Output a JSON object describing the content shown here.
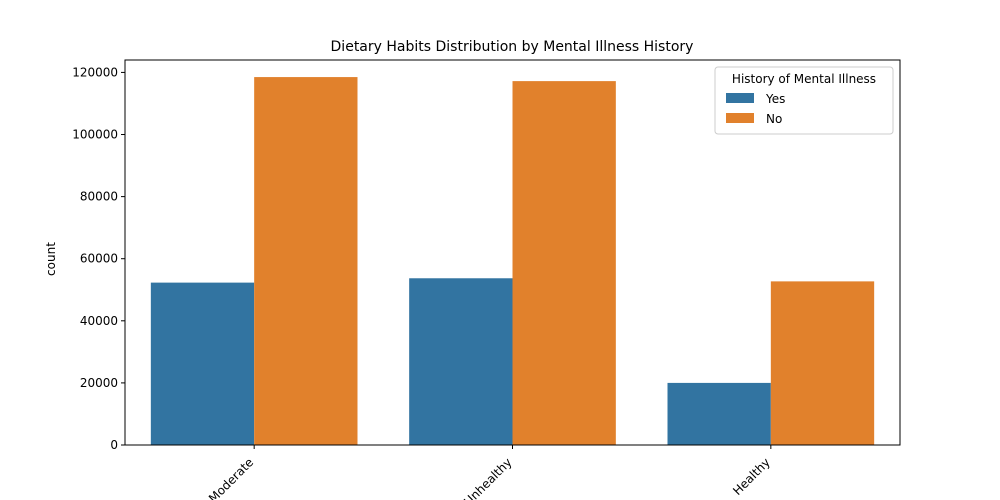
{
  "chart_data": {
    "type": "bar",
    "title": "Dietary Habits Distribution by Mental Illness History",
    "xlabel": "",
    "ylabel": "count",
    "ylim": [
      0,
      124000
    ],
    "yticks": [
      0,
      20000,
      40000,
      60000,
      80000,
      100000,
      120000
    ],
    "ytick_labels": [
      "0",
      "20000",
      "40000",
      "60000",
      "80000",
      "100000",
      "120000"
    ],
    "categories": [
      "Moderate",
      "Unhealthy",
      "Healthy"
    ],
    "series": [
      {
        "name": "Yes",
        "color": "#3274a1",
        "values": [
          52300,
          53700,
          20000
        ]
      },
      {
        "name": "No",
        "color": "#e1812c",
        "values": [
          118500,
          117200,
          52700
        ]
      }
    ],
    "legend": {
      "title": "History of Mental Illness",
      "placement": "top-right"
    },
    "grid": false
  }
}
